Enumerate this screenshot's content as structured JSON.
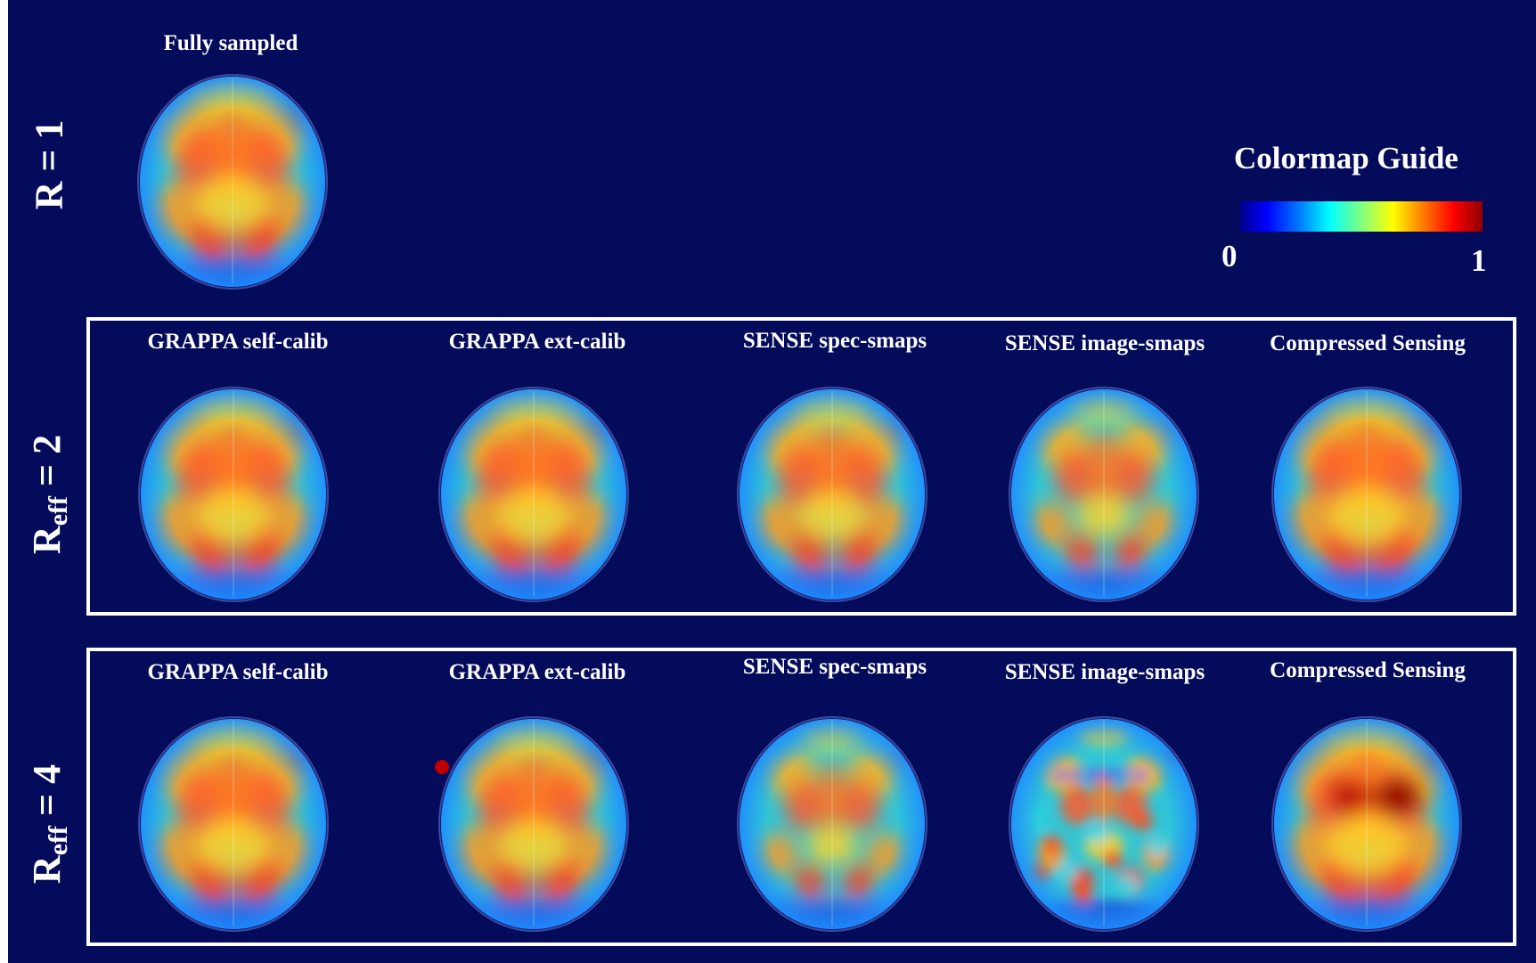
{
  "top": {
    "row_label": "R = 1",
    "column_title": "Fully sampled"
  },
  "colormap": {
    "title": "Colormap Guide",
    "min_label": "0",
    "max_label": "1",
    "stops": [
      "#00008f",
      "#0000ff",
      "#0080ff",
      "#00ffff",
      "#80ff80",
      "#ffff00",
      "#ff8000",
      "#ff0000",
      "#8f0000"
    ]
  },
  "row2": {
    "label_main": "R",
    "label_sub": "eff",
    "label_tail": " = 2",
    "columns": [
      "GRAPPA self-calib",
      "GRAPPA ext-calib",
      "SENSE spec-smaps",
      "SENSE image-smaps",
      "Compressed Sensing"
    ]
  },
  "row4": {
    "label_main": "R",
    "label_sub": "eff",
    "label_tail": " = 4",
    "columns": [
      "GRAPPA self-calib",
      "GRAPPA ext-calib",
      "SENSE spec-smaps",
      "SENSE image-smaps",
      "Compressed Sensing"
    ]
  }
}
